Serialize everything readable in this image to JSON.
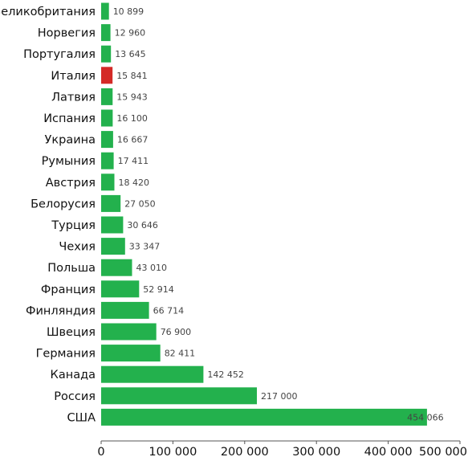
{
  "chart_data": {
    "type": "bar",
    "orientation": "horizontal",
    "categories": [
      "Великобритания",
      "Норвегия",
      "Португалия",
      "Италия",
      "Латвия",
      "Испания",
      "Украина",
      "Румыния",
      "Австрия",
      "Белорусия",
      "Турция",
      "Чехия",
      "Польша",
      "Франция",
      "Финляндия",
      "Швеция",
      "Германия",
      "Канада",
      "Россия",
      "США"
    ],
    "values": [
      10899,
      12960,
      13645,
      15841,
      15943,
      16100,
      16667,
      17411,
      18420,
      27050,
      30646,
      33347,
      43010,
      52914,
      66714,
      76900,
      82411,
      142452,
      217000,
      454066
    ],
    "value_labels": [
      "10 899",
      "12 960",
      "13 645",
      "15 841",
      "15 943",
      "16 100",
      "16 667",
      "17 411",
      "18 420",
      "27 050",
      "30 646",
      "33 347",
      "43 010",
      "52 914",
      "66 714",
      "76 900",
      "82 411",
      "142 452",
      "217 000",
      "454 066"
    ],
    "highlight_category": "Италия",
    "xlim": [
      0,
      500000
    ],
    "x_ticks": [
      0,
      100000,
      200000,
      300000,
      400000,
      500000
    ],
    "x_tick_labels": [
      "0",
      "100 000",
      "200 000",
      "300 000",
      "400 000",
      "500 000"
    ],
    "grid": false,
    "title": "",
    "xlabel": "",
    "ylabel": ""
  },
  "colors": {
    "bar": "#23b14d",
    "highlight": "#d42a27"
  }
}
